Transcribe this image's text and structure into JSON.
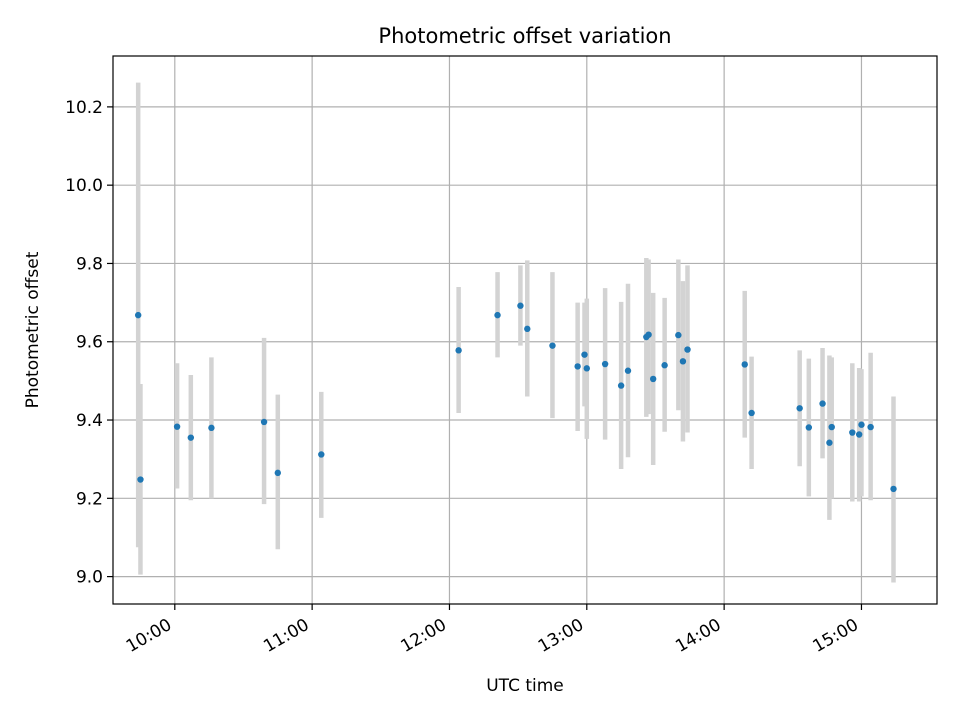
{
  "chart_data": {
    "type": "scatter",
    "title": "Photometric offset variation",
    "xlabel": "UTC time",
    "ylabel": "Photometric offset",
    "x_ticks": [
      "10:00",
      "11:00",
      "12:00",
      "13:00",
      "14:00",
      "15:00"
    ],
    "y_ticks": [
      "9.0",
      "9.2",
      "9.4",
      "9.6",
      "9.8",
      "10.0",
      "10.2"
    ],
    "xlim": [
      "09:33",
      "15:33"
    ],
    "ylim": [
      8.93,
      10.33
    ],
    "grid": true,
    "legend": "none",
    "colors": {
      "point": "#1f77b4",
      "errorbar": "#d3d3d3",
      "grid": "#b0b0b0",
      "axes": "#000000"
    },
    "points": [
      {
        "x": "09:44",
        "y": 9.668,
        "lo": 9.075,
        "hi": 10.262
      },
      {
        "x": "09:45",
        "y": 9.248,
        "lo": 9.005,
        "hi": 9.492
      },
      {
        "x": "10:01",
        "y": 9.383,
        "lo": 9.225,
        "hi": 9.545
      },
      {
        "x": "10:07",
        "y": 9.355,
        "lo": 9.195,
        "hi": 9.515
      },
      {
        "x": "10:16",
        "y": 9.38,
        "lo": 9.2,
        "hi": 9.56
      },
      {
        "x": "10:39",
        "y": 9.395,
        "lo": 9.185,
        "hi": 9.61
      },
      {
        "x": "10:45",
        "y": 9.265,
        "lo": 9.07,
        "hi": 9.465
      },
      {
        "x": "11:04",
        "y": 9.312,
        "lo": 9.15,
        "hi": 9.472
      },
      {
        "x": "12:04",
        "y": 9.578,
        "lo": 9.418,
        "hi": 9.74
      },
      {
        "x": "12:21",
        "y": 9.668,
        "lo": 9.56,
        "hi": 9.778
      },
      {
        "x": "12:31",
        "y": 9.692,
        "lo": 9.59,
        "hi": 9.795
      },
      {
        "x": "12:34",
        "y": 9.633,
        "lo": 9.46,
        "hi": 9.808
      },
      {
        "x": "12:45",
        "y": 9.59,
        "lo": 9.405,
        "hi": 9.778
      },
      {
        "x": "12:56",
        "y": 9.537,
        "lo": 9.372,
        "hi": 9.7
      },
      {
        "x": "12:59",
        "y": 9.567,
        "lo": 9.435,
        "hi": 9.7
      },
      {
        "x": "13:00",
        "y": 9.532,
        "lo": 9.352,
        "hi": 9.71
      },
      {
        "x": "13:08",
        "y": 9.543,
        "lo": 9.35,
        "hi": 9.737
      },
      {
        "x": "13:15",
        "y": 9.488,
        "lo": 9.275,
        "hi": 9.702
      },
      {
        "x": "13:18",
        "y": 9.526,
        "lo": 9.305,
        "hi": 9.748
      },
      {
        "x": "13:26",
        "y": 9.612,
        "lo": 9.408,
        "hi": 9.814
      },
      {
        "x": "13:27",
        "y": 9.618,
        "lo": 9.415,
        "hi": 9.81
      },
      {
        "x": "13:29",
        "y": 9.505,
        "lo": 9.285,
        "hi": 9.725
      },
      {
        "x": "13:34",
        "y": 9.54,
        "lo": 9.37,
        "hi": 9.712
      },
      {
        "x": "13:40",
        "y": 9.617,
        "lo": 9.425,
        "hi": 9.81
      },
      {
        "x": "13:42",
        "y": 9.55,
        "lo": 9.345,
        "hi": 9.755
      },
      {
        "x": "13:44",
        "y": 9.58,
        "lo": 9.368,
        "hi": 9.795
      },
      {
        "x": "14:09",
        "y": 9.542,
        "lo": 9.355,
        "hi": 9.73
      },
      {
        "x": "14:12",
        "y": 9.418,
        "lo": 9.275,
        "hi": 9.562
      },
      {
        "x": "14:33",
        "y": 9.43,
        "lo": 9.282,
        "hi": 9.578
      },
      {
        "x": "14:37",
        "y": 9.381,
        "lo": 9.205,
        "hi": 9.557
      },
      {
        "x": "14:43",
        "y": 9.442,
        "lo": 9.302,
        "hi": 9.584
      },
      {
        "x": "14:46",
        "y": 9.342,
        "lo": 9.145,
        "hi": 9.565
      },
      {
        "x": "14:47",
        "y": 9.382,
        "lo": 9.2,
        "hi": 9.56
      },
      {
        "x": "14:56",
        "y": 9.368,
        "lo": 9.192,
        "hi": 9.545
      },
      {
        "x": "14:59",
        "y": 9.363,
        "lo": 9.192,
        "hi": 9.533
      },
      {
        "x": "15:00",
        "y": 9.388,
        "lo": 9.205,
        "hi": 9.53
      },
      {
        "x": "15:04",
        "y": 9.382,
        "lo": 9.195,
        "hi": 9.572
      },
      {
        "x": "15:14",
        "y": 9.224,
        "lo": 8.985,
        "hi": 9.46
      }
    ]
  }
}
